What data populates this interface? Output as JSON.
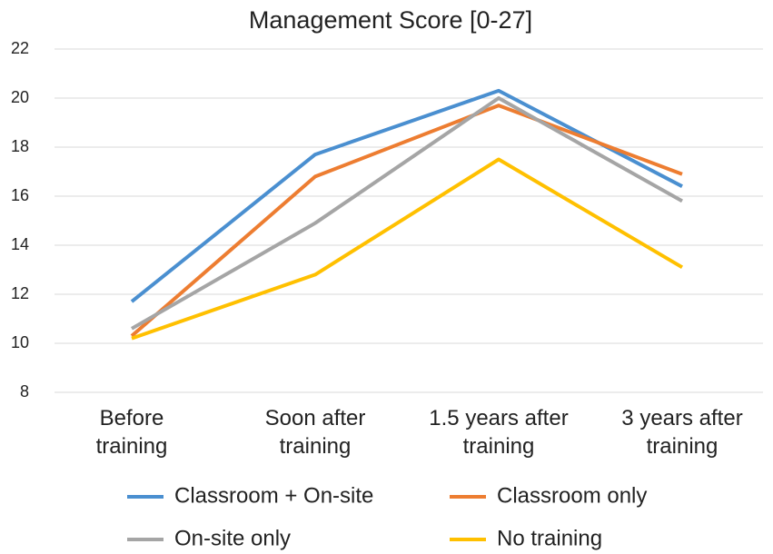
{
  "chart_data": {
    "type": "line",
    "title": "Management Score [0-27]",
    "categories": [
      "Before\ntraining",
      "Soon after\ntraining",
      "1.5 years after\ntraining",
      "3 years after\ntraining"
    ],
    "series": [
      {
        "name": "Classroom + On-site",
        "color": "#4a8fd0",
        "values": [
          11.7,
          17.7,
          20.3,
          16.4
        ]
      },
      {
        "name": "Classroom only",
        "color": "#ed7d31",
        "values": [
          10.3,
          16.8,
          19.7,
          16.9
        ]
      },
      {
        "name": "On-site only",
        "color": "#a5a5a5",
        "values": [
          10.6,
          14.9,
          20.0,
          15.8
        ]
      },
      {
        "name": "No training",
        "color": "#ffc000",
        "values": [
          10.2,
          12.8,
          17.5,
          13.1
        ]
      }
    ],
    "ylim": [
      8,
      22
    ],
    "yticks": [
      8,
      10,
      12,
      14,
      16,
      18,
      20,
      22
    ],
    "grid": true,
    "legend": "bottom"
  }
}
